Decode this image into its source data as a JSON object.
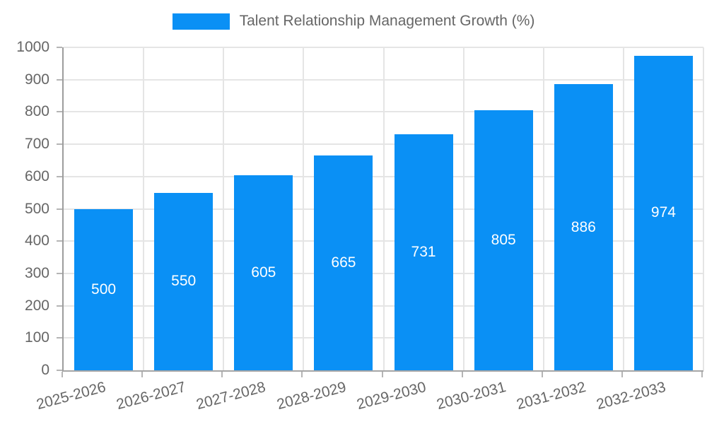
{
  "legend": {
    "label": "Talent Relationship Management Growth (%)"
  },
  "chart_data": {
    "type": "bar",
    "title": "Talent Relationship Management Growth (%)",
    "categories": [
      "2025-2026",
      "2026-2027",
      "2027-2028",
      "2028-2029",
      "2029-2030",
      "2030-2031",
      "2031-2032",
      "2032-2033"
    ],
    "values": [
      500,
      550,
      605,
      665,
      731,
      805,
      886,
      974
    ],
    "value_labels": [
      "500",
      "550",
      "605",
      "665",
      "731",
      "805",
      "886",
      "974"
    ],
    "xlabel": "",
    "ylabel": "",
    "ylim": [
      0,
      1000
    ],
    "yticks": [
      0,
      100,
      200,
      300,
      400,
      500,
      600,
      700,
      800,
      900,
      1000
    ],
    "grid": true,
    "legend_position": "top-center",
    "colors": {
      "bar": "#0a90f5",
      "value_label": "#ffffff",
      "axis_text": "#666666",
      "gridline": "#e5e5e5",
      "axis_line": "#a6a6a6"
    }
  }
}
